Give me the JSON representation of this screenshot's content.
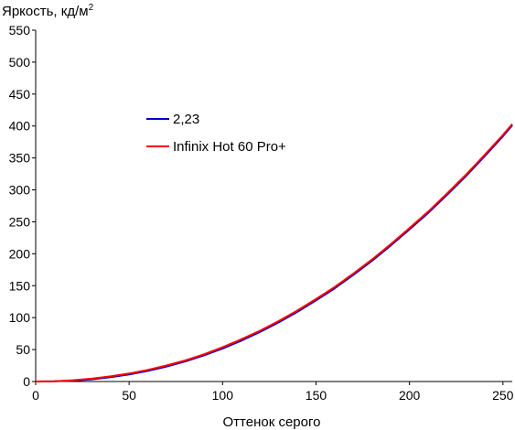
{
  "chart_data": {
    "type": "line",
    "ylabel_main": "Яркость, кд/м",
    "ylabel_sup": "2",
    "xlabel": "Оттенок серого",
    "xlim": [
      0,
      255
    ],
    "ylim": [
      0,
      550
    ],
    "x_ticks": [
      0,
      50,
      100,
      150,
      200,
      250
    ],
    "y_ticks": [
      0,
      50,
      100,
      150,
      200,
      250,
      300,
      350,
      400,
      450,
      500,
      550
    ],
    "grid": false,
    "legend_position": "upper-left",
    "series": [
      {
        "name": "2,23",
        "color": "#0000cc",
        "x": [
          0,
          10,
          20,
          30,
          40,
          50,
          60,
          70,
          80,
          90,
          100,
          110,
          120,
          130,
          140,
          150,
          160,
          170,
          180,
          190,
          200,
          210,
          220,
          230,
          240,
          250,
          255
        ],
        "y": [
          0,
          0.3,
          1.4,
          3.5,
          6.7,
          11,
          16.6,
          23.4,
          31.5,
          40.9,
          51.7,
          63.9,
          77.5,
          92.5,
          109,
          127,
          146,
          167,
          189,
          213,
          238,
          264,
          292,
          321,
          352,
          384,
          401
        ]
      },
      {
        "name": "Infinix Hot 60 Pro+",
        "color": "#ff0000",
        "x": [
          0,
          10,
          20,
          30,
          40,
          50,
          60,
          70,
          80,
          90,
          100,
          110,
          120,
          130,
          140,
          150,
          160,
          170,
          180,
          190,
          200,
          210,
          220,
          230,
          240,
          250,
          255
        ],
        "y": [
          0,
          0.5,
          2,
          4.5,
          8,
          12.5,
          18,
          25,
          33,
          42.5,
          53.5,
          66,
          79.5,
          94.5,
          111,
          129,
          148,
          169,
          191,
          215,
          240,
          266,
          294,
          323,
          354,
          386,
          403
        ]
      }
    ]
  }
}
